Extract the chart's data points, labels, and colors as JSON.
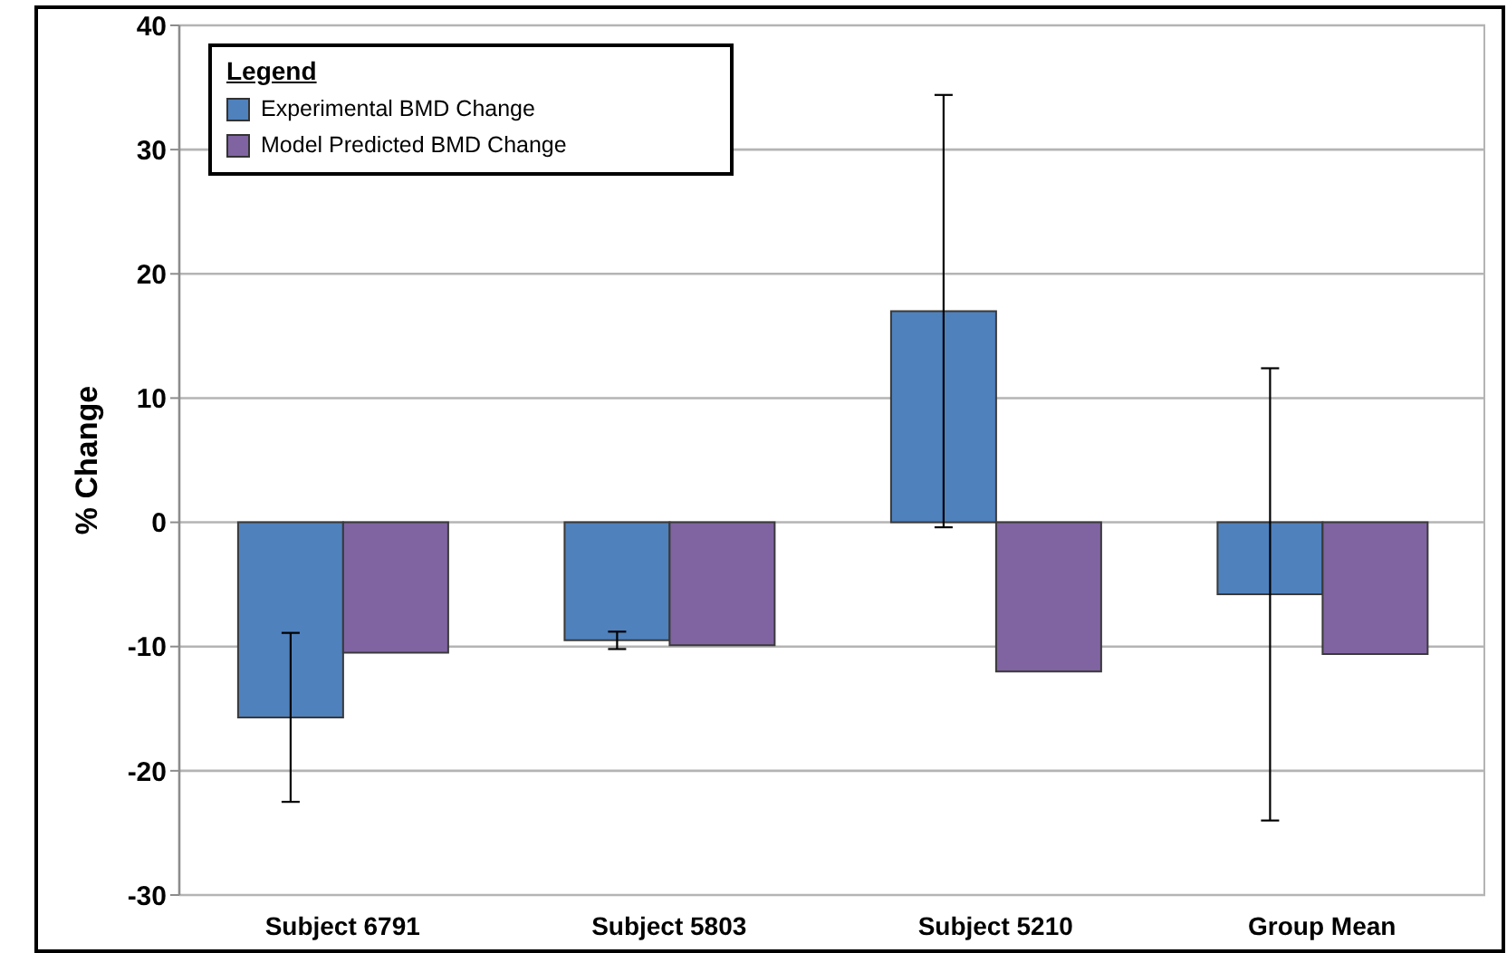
{
  "chart_data": {
    "type": "bar",
    "categories": [
      "Subject 6791",
      "Subject 5803",
      "Subject 5210",
      "Group Mean"
    ],
    "series": [
      {
        "name": "Experimental BMD Change",
        "color": "#4f81bd",
        "values": [
          -15.7,
          -9.5,
          17.0,
          -5.8
        ],
        "errors": [
          6.8,
          0.7,
          17.4,
          18.2
        ]
      },
      {
        "name": "Model Predicted BMD Change",
        "color": "#8064a2",
        "values": [
          -10.5,
          -9.9,
          -12.0,
          -10.6
        ]
      }
    ],
    "ylabel": "% Change",
    "legend_title": "Legend",
    "ylim": [
      -30,
      40
    ],
    "yticks": [
      -30,
      -20,
      -10,
      0,
      10,
      20,
      30,
      40
    ],
    "grid": "y",
    "legend": "top left"
  }
}
